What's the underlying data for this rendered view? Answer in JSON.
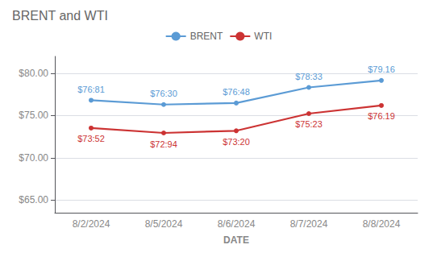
{
  "chart_data": {
    "type": "line",
    "title": "BRENT and WTI",
    "xlabel": "DATE",
    "categories": [
      "8/2/2024",
      "8/5/2024",
      "8/6/2024",
      "8/7/2024",
      "8/8/2024"
    ],
    "series": [
      {
        "name": "BRENT",
        "color": "#5B9BD5",
        "marker": "circle",
        "values": [
          76.81,
          76.3,
          76.48,
          78.33,
          79.16
        ],
        "value_labels": [
          "$76:81",
          "$76:30",
          "$76:48",
          "$78:33",
          "$79.16"
        ]
      },
      {
        "name": "WTI",
        "color": "#CC3333",
        "marker": "circle",
        "values": [
          73.52,
          72.94,
          73.2,
          75.23,
          76.19
        ],
        "value_labels": [
          "$73:52",
          "$72:94",
          "$73:20",
          "$75:23",
          "$76.19"
        ]
      }
    ],
    "ylim": [
      63.5,
      82.0
    ],
    "yticks": [
      {
        "value": 65.0,
        "label": "$65.00"
      },
      {
        "value": 70.0,
        "label": "$70.00"
      },
      {
        "value": 75.0,
        "label": "$75.00"
      },
      {
        "value": 80.0,
        "label": "$80.00"
      }
    ],
    "grid": true,
    "legend": "top",
    "data_labels": true
  }
}
